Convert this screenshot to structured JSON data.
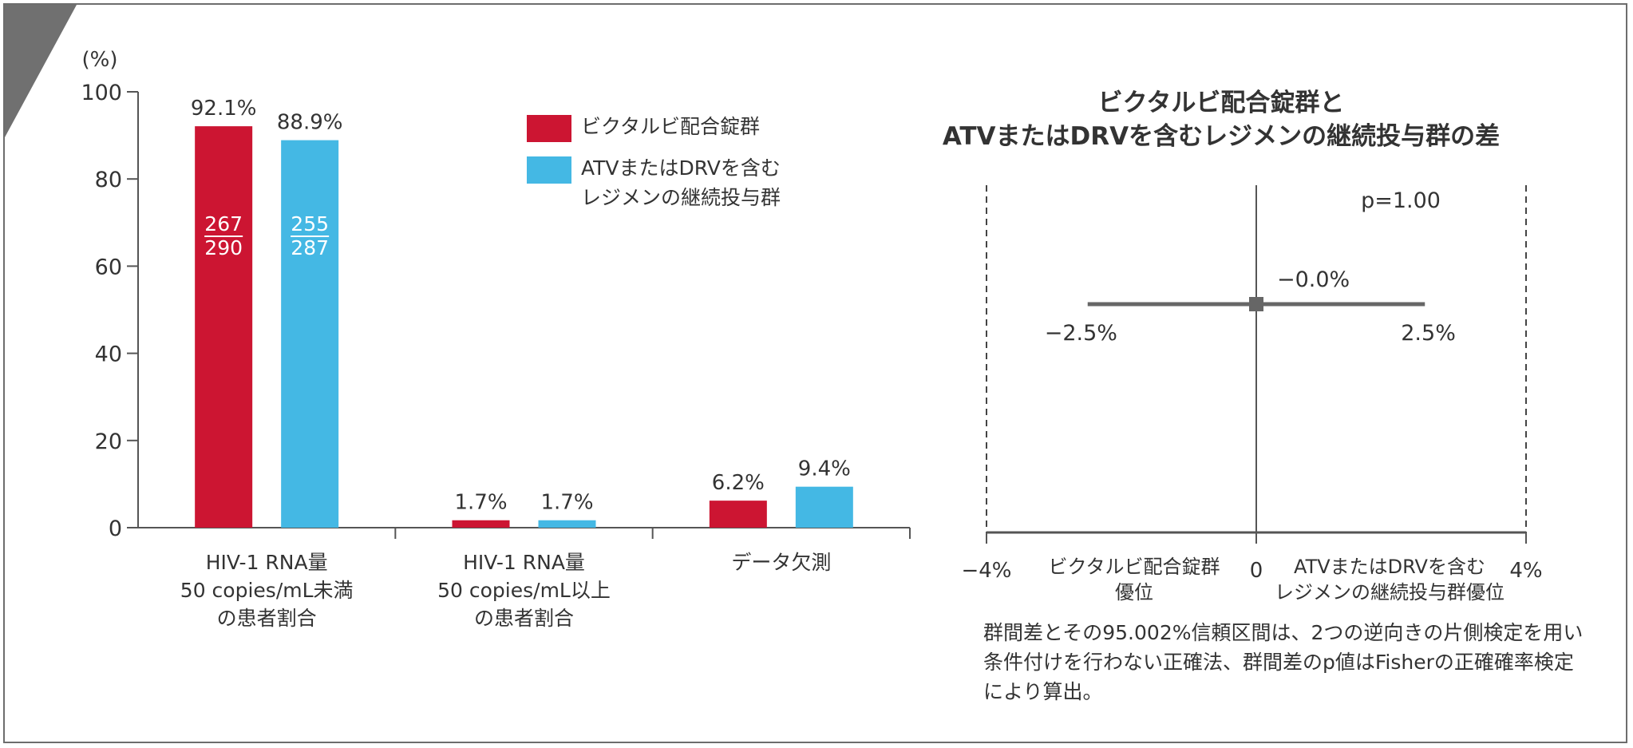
{
  "colors": {
    "group_a": "#cc1532",
    "group_b": "#44b8e4",
    "axis": "#555555",
    "text": "#333333",
    "corner": "#707070"
  },
  "icons": {
    "corner": "corner-triangle-icon"
  },
  "chart_data": [
    {
      "type": "bar",
      "y_unit_label": "(%)",
      "ylim": [
        0,
        100
      ],
      "yticks": [
        "0",
        "20",
        "40",
        "60",
        "80",
        "100"
      ],
      "categories": [
        [
          "HIV-1 RNA量",
          "50 copies/mL未満",
          "の患者割合"
        ],
        [
          "HIV-1 RNA量",
          "50 copies/mL以上",
          "の患者割合"
        ],
        [
          "データ欠測"
        ]
      ],
      "series": [
        {
          "name": "ビクタルビ配合錠群",
          "color": "#cc1532",
          "values": [
            92.1,
            1.7,
            6.2
          ],
          "value_labels": [
            "92.1%",
            "1.7%",
            "6.2%"
          ],
          "fraction": {
            "numerator": "267",
            "denominator": "290"
          }
        },
        {
          "name": "ATVまたはDRVを含む\nレジメンの継続投与群",
          "color": "#44b8e4",
          "values": [
            88.9,
            1.7,
            9.4
          ],
          "value_labels": [
            "88.9%",
            "1.7%",
            "9.4%"
          ],
          "fraction": {
            "numerator": "255",
            "denominator": "287"
          }
        }
      ],
      "legend": "top-right",
      "grid": false
    },
    {
      "type": "forest",
      "title": "ビクタルビ配合錠群と\nATVまたはDRVを含むレジメンの継続投与群の差",
      "xlim": [
        -4,
        4
      ],
      "xticks": [
        "−4%",
        "0",
        "4%"
      ],
      "estimate": -0.0,
      "estimate_label": "−0.0%",
      "ci": [
        -2.5,
        2.5
      ],
      "ci_labels": [
        "−2.5%",
        "2.5%"
      ],
      "p_value_label": "p=1.00",
      "left_favor": [
        "ビクタルビ配合錠群",
        "優位"
      ],
      "right_favor": [
        "ATVまたはDRVを含む",
        "レジメンの継続投与群優位"
      ],
      "footnote": "群間差とその95.002%信頼区間は、2つの逆向きの片側検定を用い条件付けを行わない正確法、群間差のp値はFisherの正確確率検定により算出。"
    }
  ]
}
